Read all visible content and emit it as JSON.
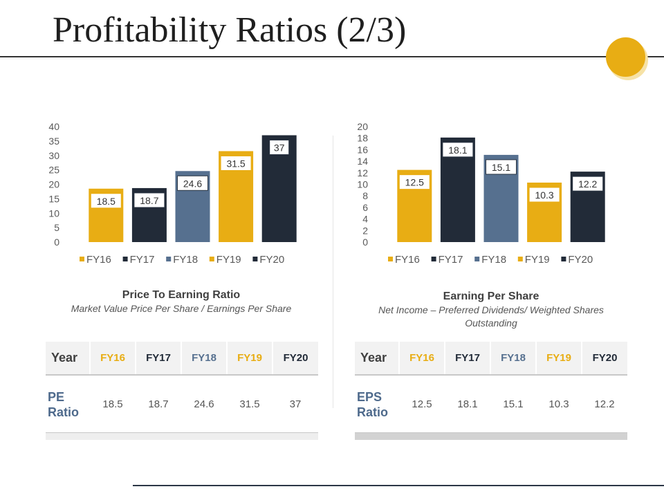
{
  "title": "Profitability Ratios (2/3)",
  "colors": {
    "gold": "#e8ad14",
    "navy": "#222b38",
    "slate": "#56708f",
    "rule": "#333333"
  },
  "chart_data": [
    {
      "type": "bar",
      "categories": [
        "FY16",
        "FY17",
        "FY18",
        "FY19",
        "FY20"
      ],
      "values": [
        18.5,
        18.7,
        24.6,
        31.5,
        37
      ],
      "value_labels": [
        "18.5",
        "18.7",
        "24.6",
        "31.5",
        "37"
      ],
      "yticks": [
        "0",
        "5",
        "10",
        "15",
        "20",
        "25",
        "30",
        "35",
        "40"
      ],
      "ylim": [
        0,
        40
      ],
      "legend": [
        "FY16",
        "FY17",
        "FY18",
        "FY19",
        "FY20"
      ],
      "bar_colors": [
        "#e8ad14",
        "#222b38",
        "#56708f",
        "#e8ad14",
        "#222b38"
      ],
      "title": "Price To Earning Ratio",
      "subtitle": "Market Value Price Per Share / Earnings Per Share",
      "legend_position": "bottom",
      "grid": false
    },
    {
      "type": "bar",
      "categories": [
        "FY16",
        "FY17",
        "FY18",
        "FY19",
        "FY20"
      ],
      "values": [
        12.5,
        18.1,
        15.1,
        10.3,
        12.2
      ],
      "value_labels": [
        "12.5",
        "18.1",
        "15.1",
        "10.3",
        "12.2"
      ],
      "yticks": [
        "0",
        "2",
        "4",
        "6",
        "8",
        "10",
        "12",
        "14",
        "16",
        "18",
        "20"
      ],
      "ylim": [
        0,
        20
      ],
      "legend": [
        "FY16",
        "FY17",
        "FY18",
        "FY19",
        "FY20"
      ],
      "bar_colors": [
        "#e8ad14",
        "#222b38",
        "#56708f",
        "#e8ad14",
        "#222b38"
      ],
      "title": "Earning Per Share",
      "subtitle": "Net Income – Preferred Dividends/ Weighted Shares Outstanding",
      "legend_position": "bottom",
      "grid": false
    }
  ],
  "tables": [
    {
      "year_label": "Year",
      "years": [
        "FY16",
        "FY17",
        "FY18",
        "FY19",
        "FY20"
      ],
      "metric": "PE Ratio",
      "values": [
        "18.5",
        "18.7",
        "24.6",
        "31.5",
        "37"
      ]
    },
    {
      "year_label": "Year",
      "years": [
        "FY16",
        "FY17",
        "FY18",
        "FY19",
        "FY20"
      ],
      "metric": "EPS Ratio",
      "values": [
        "12.5",
        "18.1",
        "15.1",
        "10.3",
        "12.2"
      ]
    }
  ]
}
